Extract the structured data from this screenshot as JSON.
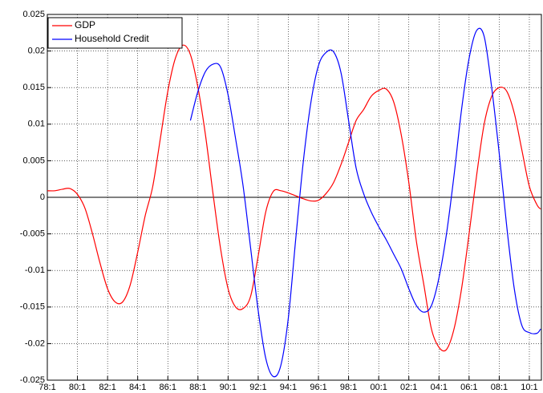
{
  "chart_data": {
    "type": "line",
    "x": [
      1978,
      1978.5,
      1979,
      1979.5,
      1980,
      1980.5,
      1981,
      1981.5,
      1982,
      1982.5,
      1983,
      1983.5,
      1984,
      1984.5,
      1985,
      1985.5,
      1986,
      1986.5,
      1987,
      1987.5,
      1988,
      1988.5,
      1989,
      1989.5,
      1990,
      1990.5,
      1991,
      1991.5,
      1992,
      1992.5,
      1993,
      1993.5,
      1994,
      1994.5,
      1995,
      1995.5,
      1996,
      1996.5,
      1997,
      1997.5,
      1998,
      1998.5,
      1999,
      1999.5,
      2000,
      2000.5,
      2001,
      2001.5,
      2002,
      2002.5,
      2003,
      2003.5,
      2004,
      2004.5,
      2005,
      2005.5,
      2006,
      2006.5,
      2007,
      2007.5,
      2008,
      2008.5,
      2009,
      2009.5,
      2010,
      2010.5,
      2010.75
    ],
    "series": [
      {
        "name": "GDP",
        "color": "#ff0000",
        "values": [
          0.0009,
          0.0009,
          0.0011,
          0.0012,
          0.0004,
          -0.0015,
          -0.005,
          -0.009,
          -0.0125,
          -0.0143,
          -0.0143,
          -0.012,
          -0.0075,
          -0.0025,
          0.0015,
          0.008,
          0.0145,
          0.019,
          0.0208,
          0.0195,
          0.015,
          0.0085,
          0.0005,
          -0.007,
          -0.0125,
          -0.015,
          -0.0152,
          -0.0135,
          -0.008,
          -0.002,
          0.0008,
          0.0009,
          0.0006,
          0.0002,
          -0.0002,
          -0.0005,
          -0.0004,
          0.0005,
          0.002,
          0.0045,
          0.0075,
          0.0105,
          0.012,
          0.0138,
          0.0146,
          0.0148,
          0.013,
          0.0085,
          0.002,
          -0.006,
          -0.012,
          -0.018,
          -0.0205,
          -0.0208,
          -0.018,
          -0.0125,
          -0.005,
          0.003,
          0.01,
          0.0138,
          0.015,
          0.0145,
          0.0115,
          0.0065,
          0.0015,
          -0.001,
          -0.0016
        ]
      },
      {
        "name": "Household Credit",
        "color": "#0000ff",
        "values": [
          null,
          null,
          null,
          null,
          null,
          null,
          null,
          null,
          null,
          null,
          null,
          null,
          null,
          null,
          null,
          null,
          null,
          null,
          null,
          0.0105,
          0.0145,
          0.0172,
          0.0182,
          0.0178,
          0.014,
          0.008,
          0.0015,
          -0.007,
          -0.0155,
          -0.022,
          -0.0245,
          -0.023,
          -0.0165,
          -0.0055,
          0.005,
          0.013,
          0.018,
          0.0198,
          0.0199,
          0.017,
          0.0105,
          0.004,
          0.0005,
          -0.002,
          -0.004,
          -0.0058,
          -0.0078,
          -0.0098,
          -0.0125,
          -0.0148,
          -0.0157,
          -0.0148,
          -0.011,
          -0.005,
          0.003,
          0.012,
          0.019,
          0.0228,
          0.022,
          0.015,
          0.006,
          -0.004,
          -0.0125,
          -0.0175,
          -0.0185,
          -0.0186,
          -0.018
        ]
      }
    ],
    "xlim": [
      1978,
      2010.8
    ],
    "xticks": [
      {
        "value": 1978,
        "label": "78:1"
      },
      {
        "value": 1980,
        "label": "80:1"
      },
      {
        "value": 1982,
        "label": "82:1"
      },
      {
        "value": 1984,
        "label": "84:1"
      },
      {
        "value": 1986,
        "label": "86:1"
      },
      {
        "value": 1988,
        "label": "88:1"
      },
      {
        "value": 1990,
        "label": "90:1"
      },
      {
        "value": 1992,
        "label": "92:1"
      },
      {
        "value": 1994,
        "label": "94:1"
      },
      {
        "value": 1996,
        "label": "96:1"
      },
      {
        "value": 1998,
        "label": "98:1"
      },
      {
        "value": 2000,
        "label": "00:1"
      },
      {
        "value": 2002,
        "label": "02:1"
      },
      {
        "value": 2004,
        "label": "04:1"
      },
      {
        "value": 2006,
        "label": "06:1"
      },
      {
        "value": 2008,
        "label": "08:1"
      },
      {
        "value": 2010,
        "label": "10:1"
      }
    ],
    "ylim": [
      -0.025,
      0.025
    ],
    "yticks": [
      -0.025,
      -0.02,
      -0.015,
      -0.01,
      -0.005,
      0,
      0.005,
      0.01,
      0.015,
      0.02,
      0.025
    ],
    "grid": true,
    "legend": "upper-left"
  }
}
